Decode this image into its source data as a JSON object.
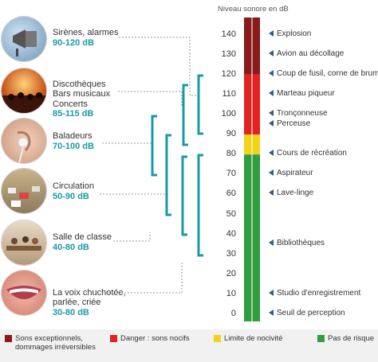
{
  "scale": {
    "title": "Niveau sonore en dB",
    "ticks": [
      "140",
      "130",
      "120",
      "110",
      "100",
      "90",
      "80",
      "70",
      "60",
      "50",
      "40",
      "30",
      "20",
      "10",
      "0"
    ]
  },
  "sources": [
    {
      "name": "Sirènes, alarmes",
      "range": "90-120 dB",
      "icon": "siren-icon"
    },
    {
      "name": "Discothèques\nBars musicaux\nConcerts",
      "range": "85-115 dB",
      "icon": "concert-icon"
    },
    {
      "name": "Baladeurs",
      "range": "70-100 dB",
      "icon": "earphone-icon"
    },
    {
      "name": "Circulation",
      "range": "50-90 dB",
      "icon": "traffic-icon"
    },
    {
      "name": "Salle de classe",
      "range": "40-80 dB",
      "icon": "classroom-icon"
    },
    {
      "name": "La voix chuchotée,\nparlée, criée",
      "range": "30-80 dB",
      "icon": "mouth-icon"
    }
  ],
  "events": [
    {
      "label": "Explosion",
      "db": 140
    },
    {
      "label": "Avion au décollage",
      "db": 130
    },
    {
      "label": "Coup de fusil, corne de brume",
      "db": 120
    },
    {
      "label": "Marteau piqueur",
      "db": 110
    },
    {
      "label": "Tronçonneuse",
      "db": 100
    },
    {
      "label": "Perceuse",
      "db": 95
    },
    {
      "label": "Cours de récréation",
      "db": 80
    },
    {
      "label": "Aspirateur",
      "db": 70
    },
    {
      "label": "Lave-linge",
      "db": 60
    },
    {
      "label": "Bibliothèques",
      "db": 35
    },
    {
      "label": "Studio d'enregistrement",
      "db": 10
    },
    {
      "label": "Seuil de perception",
      "db": 0
    }
  ],
  "zones": [
    {
      "from": 120,
      "to": 150,
      "color": "#8b1a1a"
    },
    {
      "from": 90,
      "to": 120,
      "color": "#e32222"
    },
    {
      "from": 80,
      "to": 90,
      "color": "#f3d21a"
    },
    {
      "from": 0,
      "to": 80,
      "color": "#2e9e3e"
    }
  ],
  "legend": [
    {
      "label": "Sons exceptionnels,\ndommages irréversibles",
      "color": "#8b1a1a"
    },
    {
      "label": "Danger : sons nocifs",
      "color": "#e32222"
    },
    {
      "label": "Limite de nocivité",
      "color": "#f3d21a"
    },
    {
      "label": "Pas de risque",
      "color": "#2e9e3e"
    }
  ]
}
